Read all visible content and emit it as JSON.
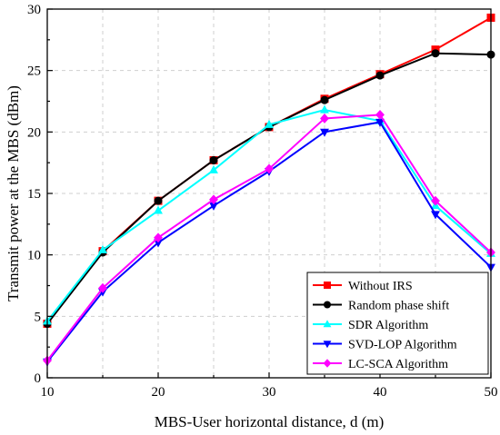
{
  "chart_data": {
    "type": "line",
    "xlabel": "MBS-User horizontal distance, d (m)",
    "ylabel": "Transmit power at the MBS (dBm)",
    "xlim": [
      10,
      50
    ],
    "ylim": [
      0,
      30
    ],
    "xticks": [
      10,
      20,
      30,
      40,
      50
    ],
    "yticks": [
      0,
      5,
      10,
      15,
      20,
      25,
      30
    ],
    "grid": true,
    "legend_position": "bottom-right",
    "x": [
      10,
      15,
      20,
      25,
      30,
      35,
      40,
      45,
      50
    ],
    "series": [
      {
        "name": "Without IRS",
        "color": "#ff0000",
        "marker": "square",
        "values": [
          4.4,
          10.3,
          14.4,
          17.7,
          20.4,
          22.7,
          24.7,
          26.7,
          29.3
        ]
      },
      {
        "name": "Random phase shift",
        "color": "#000000",
        "marker": "circle",
        "values": [
          4.4,
          10.2,
          14.4,
          17.7,
          20.4,
          22.6,
          24.6,
          26.4,
          26.3
        ]
      },
      {
        "name": "SDR Algorithm",
        "color": "#00ffff",
        "marker": "triangle-up",
        "values": [
          4.6,
          10.4,
          13.6,
          16.9,
          20.6,
          21.8,
          20.9,
          14.0,
          10.1
        ]
      },
      {
        "name": "SVD-LOP Algorithm",
        "color": "#0000ff",
        "marker": "triangle-down",
        "values": [
          1.3,
          7.0,
          11.0,
          14.0,
          16.8,
          20.0,
          20.8,
          13.3,
          9.0
        ]
      },
      {
        "name": "LC-SCA Algorithm",
        "color": "#ff00ff",
        "marker": "diamond",
        "values": [
          1.4,
          7.3,
          11.4,
          14.5,
          17.0,
          21.1,
          21.4,
          14.4,
          10.2
        ]
      }
    ]
  }
}
